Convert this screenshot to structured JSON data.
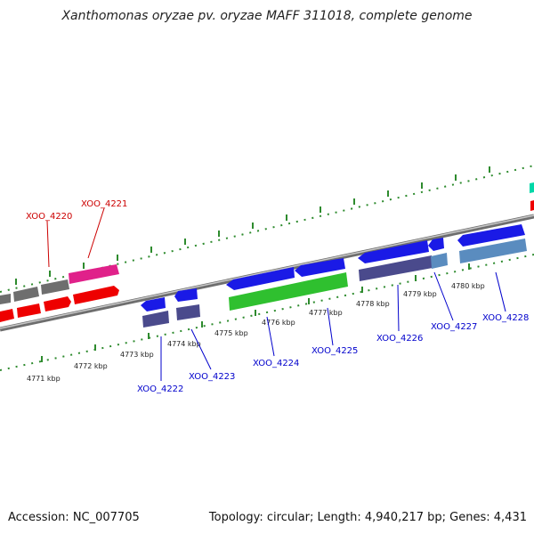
{
  "title": "Xanthomonas oryzae pv. oryzae MAFF 311018, complete genome",
  "footer": {
    "accession": "Accession: NC_007705",
    "summary": "Topology: circular; Length: 4,940,217 bp; Genes: 4,431"
  },
  "colors": {
    "backbone": "#8c8c8c",
    "tick_dots": "#2e8b2e",
    "label_red": "#cc0000",
    "label_blue": "#0000cc"
  },
  "scale_labels": [
    "4771 kbp",
    "4772 kbp",
    "4773 kbp",
    "4774 kbp",
    "4775 kbp",
    "4776 kbp",
    "4777 kbp",
    "4778 kbp",
    "4779 kbp",
    "4780 kbp"
  ],
  "gene_labels": {
    "XOO_4220": "XOO_4220",
    "XOO_4221": "XOO_4221",
    "XOO_4222": "XOO_4222",
    "XOO_4223": "XOO_4223",
    "XOO_4224": "XOO_4224",
    "XOO_4225": "XOO_4225",
    "XOO_4226": "XOO_4226",
    "XOO_4227": "XOO_4227",
    "XOO_4228": "XOO_4228"
  }
}
